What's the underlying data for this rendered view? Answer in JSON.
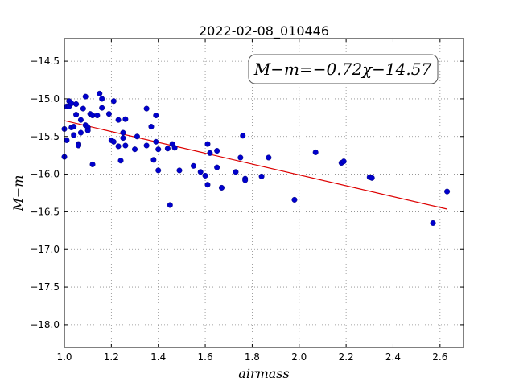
{
  "chart_data": {
    "type": "scatter",
    "title": "2022-02-08_010446",
    "xlabel": "airmass",
    "ylabel": "M−m",
    "xlim": [
      1.0,
      2.7
    ],
    "ylim": [
      -18.3,
      -14.2
    ],
    "y_inverted": true,
    "grid": true,
    "x_ticks": [
      "1.0",
      "1.2",
      "1.4",
      "1.6",
      "1.8",
      "2.0",
      "2.2",
      "2.4",
      "2.6"
    ],
    "y_ticks": [
      "−14.5",
      "−15.0",
      "−15.5",
      "−16.0",
      "−16.5",
      "−17.0",
      "−17.5",
      "−18.0"
    ],
    "annotation": "M−m=−0.72χ−14.57",
    "colors": {
      "points": "#0000cc",
      "fit": "#dd0000",
      "grid": "#888888"
    },
    "fit": {
      "slope": -0.72,
      "intercept": -14.57,
      "x_range": [
        1.0,
        2.63
      ]
    },
    "series": [
      {
        "points": [
          [
            1.0,
            -15.4
          ],
          [
            1.0,
            -15.77
          ],
          [
            1.01,
            -15.1
          ],
          [
            1.01,
            -15.55
          ],
          [
            1.02,
            -15.03
          ],
          [
            1.02,
            -15.1
          ],
          [
            1.03,
            -15.06
          ],
          [
            1.03,
            -15.38
          ],
          [
            1.04,
            -15.37
          ],
          [
            1.04,
            -15.48
          ],
          [
            1.05,
            -15.07
          ],
          [
            1.05,
            -15.21
          ],
          [
            1.06,
            -15.6
          ],
          [
            1.06,
            -15.62
          ],
          [
            1.07,
            -15.45
          ],
          [
            1.07,
            -15.28
          ],
          [
            1.08,
            -15.13
          ],
          [
            1.09,
            -14.97
          ],
          [
            1.09,
            -15.35
          ],
          [
            1.1,
            -15.38
          ],
          [
            1.1,
            -15.42
          ],
          [
            1.11,
            -15.2
          ],
          [
            1.12,
            -15.87
          ],
          [
            1.12,
            -15.22
          ],
          [
            1.14,
            -15.22
          ],
          [
            1.15,
            -14.93
          ],
          [
            1.16,
            -15.12
          ],
          [
            1.16,
            -15.0
          ],
          [
            1.19,
            -15.2
          ],
          [
            1.2,
            -15.55
          ],
          [
            1.21,
            -15.03
          ],
          [
            1.21,
            -15.57
          ],
          [
            1.23,
            -15.28
          ],
          [
            1.23,
            -15.63
          ],
          [
            1.24,
            -15.82
          ],
          [
            1.25,
            -15.45
          ],
          [
            1.25,
            -15.52
          ],
          [
            1.26,
            -15.27
          ],
          [
            1.26,
            -15.62
          ],
          [
            1.3,
            -15.67
          ],
          [
            1.31,
            -15.5
          ],
          [
            1.35,
            -15.13
          ],
          [
            1.35,
            -15.62
          ],
          [
            1.37,
            -15.37
          ],
          [
            1.38,
            -15.81
          ],
          [
            1.39,
            -15.57
          ],
          [
            1.39,
            -15.22
          ],
          [
            1.4,
            -15.95
          ],
          [
            1.4,
            -15.67
          ],
          [
            1.44,
            -15.66
          ],
          [
            1.45,
            -16.41
          ],
          [
            1.46,
            -15.6
          ],
          [
            1.47,
            -15.65
          ],
          [
            1.49,
            -15.95
          ],
          [
            1.55,
            -15.89
          ],
          [
            1.58,
            -15.97
          ],
          [
            1.6,
            -16.02
          ],
          [
            1.61,
            -15.6
          ],
          [
            1.61,
            -16.14
          ],
          [
            1.62,
            -15.72
          ],
          [
            1.65,
            -15.69
          ],
          [
            1.65,
            -15.91
          ],
          [
            1.67,
            -16.18
          ],
          [
            1.73,
            -15.97
          ],
          [
            1.75,
            -15.78
          ],
          [
            1.76,
            -15.49
          ],
          [
            1.77,
            -16.06
          ],
          [
            1.77,
            -16.08
          ],
          [
            1.84,
            -16.03
          ],
          [
            1.87,
            -15.78
          ],
          [
            1.98,
            -16.34
          ],
          [
            2.07,
            -15.71
          ],
          [
            2.18,
            -15.85
          ],
          [
            2.19,
            -15.83
          ],
          [
            2.3,
            -16.04
          ],
          [
            2.31,
            -16.05
          ],
          [
            2.57,
            -16.65
          ],
          [
            2.63,
            -16.23
          ]
        ]
      }
    ]
  }
}
